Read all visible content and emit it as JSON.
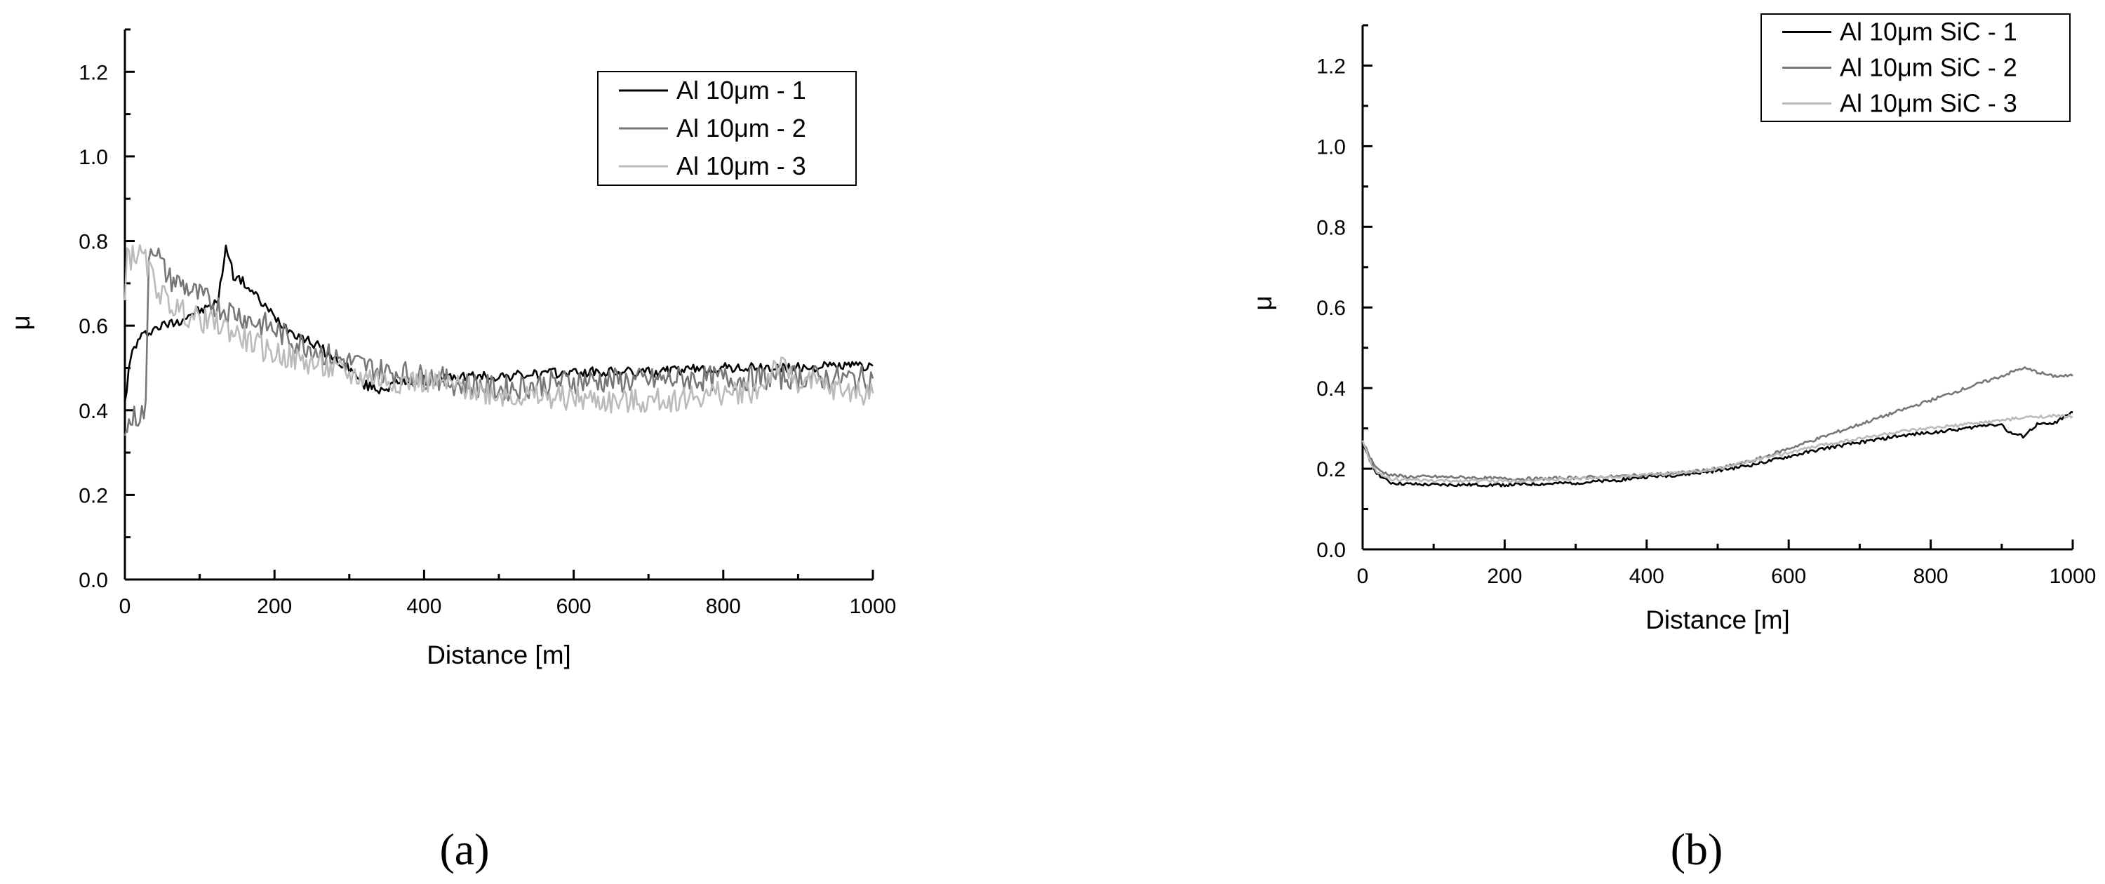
{
  "chart_data": [
    {
      "type": "line",
      "panel_label": "(a)",
      "xlabel": "Distance [m]",
      "ylabel": "μ",
      "xlim": [
        0,
        1000
      ],
      "ylim": [
        0,
        1.3
      ],
      "xticks": [
        "0",
        "200",
        "400",
        "600",
        "800",
        "1000"
      ],
      "yticks": [
        "0.0",
        "0.2",
        "0.4",
        "0.6",
        "0.8",
        "1.0",
        "1.2"
      ],
      "legend_position": "top-right",
      "series": [
        {
          "name": "Al 10μm - 1",
          "color": "#000000",
          "x": [
            0,
            5,
            10,
            20,
            35,
            50,
            70,
            90,
            110,
            125,
            135,
            145,
            160,
            180,
            200,
            220,
            240,
            260,
            280,
            300,
            320,
            340,
            360,
            380,
            400,
            420,
            440,
            460,
            480,
            500,
            550,
            600,
            650,
            700,
            750,
            800,
            850,
            900,
            950,
            1000
          ],
          "y": [
            0.42,
            0.49,
            0.54,
            0.57,
            0.59,
            0.6,
            0.61,
            0.63,
            0.64,
            0.66,
            0.79,
            0.72,
            0.7,
            0.66,
            0.62,
            0.59,
            0.57,
            0.55,
            0.52,
            0.5,
            0.46,
            0.45,
            0.46,
            0.47,
            0.47,
            0.47,
            0.48,
            0.48,
            0.48,
            0.48,
            0.485,
            0.49,
            0.49,
            0.49,
            0.495,
            0.5,
            0.5,
            0.5,
            0.505,
            0.505
          ]
        },
        {
          "name": "Al 10μm - 2",
          "color": "#777777",
          "x": [
            0,
            3,
            10,
            20,
            28,
            32,
            40,
            50,
            60,
            75,
            90,
            110,
            130,
            150,
            170,
            190,
            210,
            230,
            250,
            270,
            290,
            310,
            330,
            350,
            370,
            390,
            410,
            430,
            450,
            470,
            500,
            550,
            600,
            650,
            700,
            750,
            800,
            850,
            900,
            950,
            1000
          ],
          "y": [
            0.34,
            0.36,
            0.38,
            0.39,
            0.4,
            0.78,
            0.79,
            0.74,
            0.71,
            0.7,
            0.68,
            0.66,
            0.64,
            0.63,
            0.61,
            0.6,
            0.58,
            0.56,
            0.55,
            0.53,
            0.52,
            0.51,
            0.5,
            0.49,
            0.49,
            0.48,
            0.48,
            0.47,
            0.46,
            0.46,
            0.45,
            0.46,
            0.47,
            0.47,
            0.47,
            0.475,
            0.475,
            0.475,
            0.48,
            0.475,
            0.475
          ]
        },
        {
          "name": "Al 10μm - 3",
          "color": "#bbbbbb",
          "x": [
            0,
            3,
            8,
            15,
            25,
            40,
            55,
            70,
            90,
            110,
            130,
            150,
            170,
            190,
            210,
            230,
            250,
            270,
            290,
            310,
            330,
            350,
            370,
            400,
            430,
            460,
            500,
            550,
            600,
            650,
            700,
            750,
            800,
            850,
            870,
            900,
            950,
            1000
          ],
          "y": [
            0.66,
            0.78,
            0.76,
            0.77,
            0.76,
            0.7,
            0.66,
            0.64,
            0.62,
            0.61,
            0.6,
            0.58,
            0.56,
            0.54,
            0.53,
            0.52,
            0.51,
            0.5,
            0.49,
            0.48,
            0.48,
            0.47,
            0.47,
            0.47,
            0.46,
            0.45,
            0.44,
            0.43,
            0.43,
            0.42,
            0.42,
            0.43,
            0.44,
            0.45,
            0.51,
            0.47,
            0.45,
            0.44
          ]
        }
      ]
    },
    {
      "type": "line",
      "panel_label": "(b)",
      "xlabel": "Distance [m]",
      "ylabel": "μ",
      "xlim": [
        0,
        1000
      ],
      "ylim": [
        0,
        1.3
      ],
      "xticks": [
        "0",
        "200",
        "400",
        "600",
        "800",
        "1000"
      ],
      "yticks": [
        "0.0",
        "0.2",
        "0.4",
        "0.6",
        "0.8",
        "1.0",
        "1.2"
      ],
      "legend_position": "top-right",
      "series": [
        {
          "name": "Al 10μm SiC - 1",
          "color": "#000000",
          "x": [
            0,
            10,
            20,
            30,
            40,
            60,
            100,
            150,
            200,
            250,
            300,
            350,
            400,
            450,
            500,
            550,
            600,
            650,
            700,
            750,
            800,
            850,
            880,
            900,
            910,
            930,
            950,
            970,
            990,
            1000
          ],
          "y": [
            0.26,
            0.22,
            0.19,
            0.175,
            0.165,
            0.162,
            0.16,
            0.16,
            0.16,
            0.162,
            0.165,
            0.17,
            0.18,
            0.185,
            0.195,
            0.21,
            0.23,
            0.25,
            0.265,
            0.28,
            0.29,
            0.3,
            0.31,
            0.31,
            0.29,
            0.28,
            0.31,
            0.31,
            0.33,
            0.34
          ]
        },
        {
          "name": "Al 10μm SiC - 2",
          "color": "#777777",
          "x": [
            0,
            10,
            20,
            30,
            40,
            60,
            100,
            150,
            200,
            250,
            300,
            350,
            400,
            450,
            500,
            550,
            600,
            650,
            700,
            750,
            800,
            850,
            900,
            930,
            950,
            970,
            1000
          ],
          "y": [
            0.27,
            0.23,
            0.2,
            0.19,
            0.185,
            0.18,
            0.18,
            0.178,
            0.175,
            0.175,
            0.178,
            0.18,
            0.185,
            0.19,
            0.2,
            0.22,
            0.25,
            0.28,
            0.31,
            0.34,
            0.37,
            0.4,
            0.43,
            0.45,
            0.44,
            0.43,
            0.43
          ]
        },
        {
          "name": "Al 10μm SiC - 3",
          "color": "#bbbbbb",
          "x": [
            0,
            10,
            20,
            30,
            40,
            60,
            100,
            150,
            200,
            250,
            300,
            350,
            400,
            450,
            500,
            550,
            600,
            650,
            700,
            750,
            800,
            850,
            900,
            950,
            1000
          ],
          "y": [
            0.27,
            0.22,
            0.19,
            0.18,
            0.175,
            0.172,
            0.17,
            0.17,
            0.17,
            0.172,
            0.175,
            0.18,
            0.185,
            0.19,
            0.2,
            0.22,
            0.24,
            0.26,
            0.275,
            0.29,
            0.3,
            0.31,
            0.32,
            0.33,
            0.33
          ]
        }
      ]
    }
  ]
}
